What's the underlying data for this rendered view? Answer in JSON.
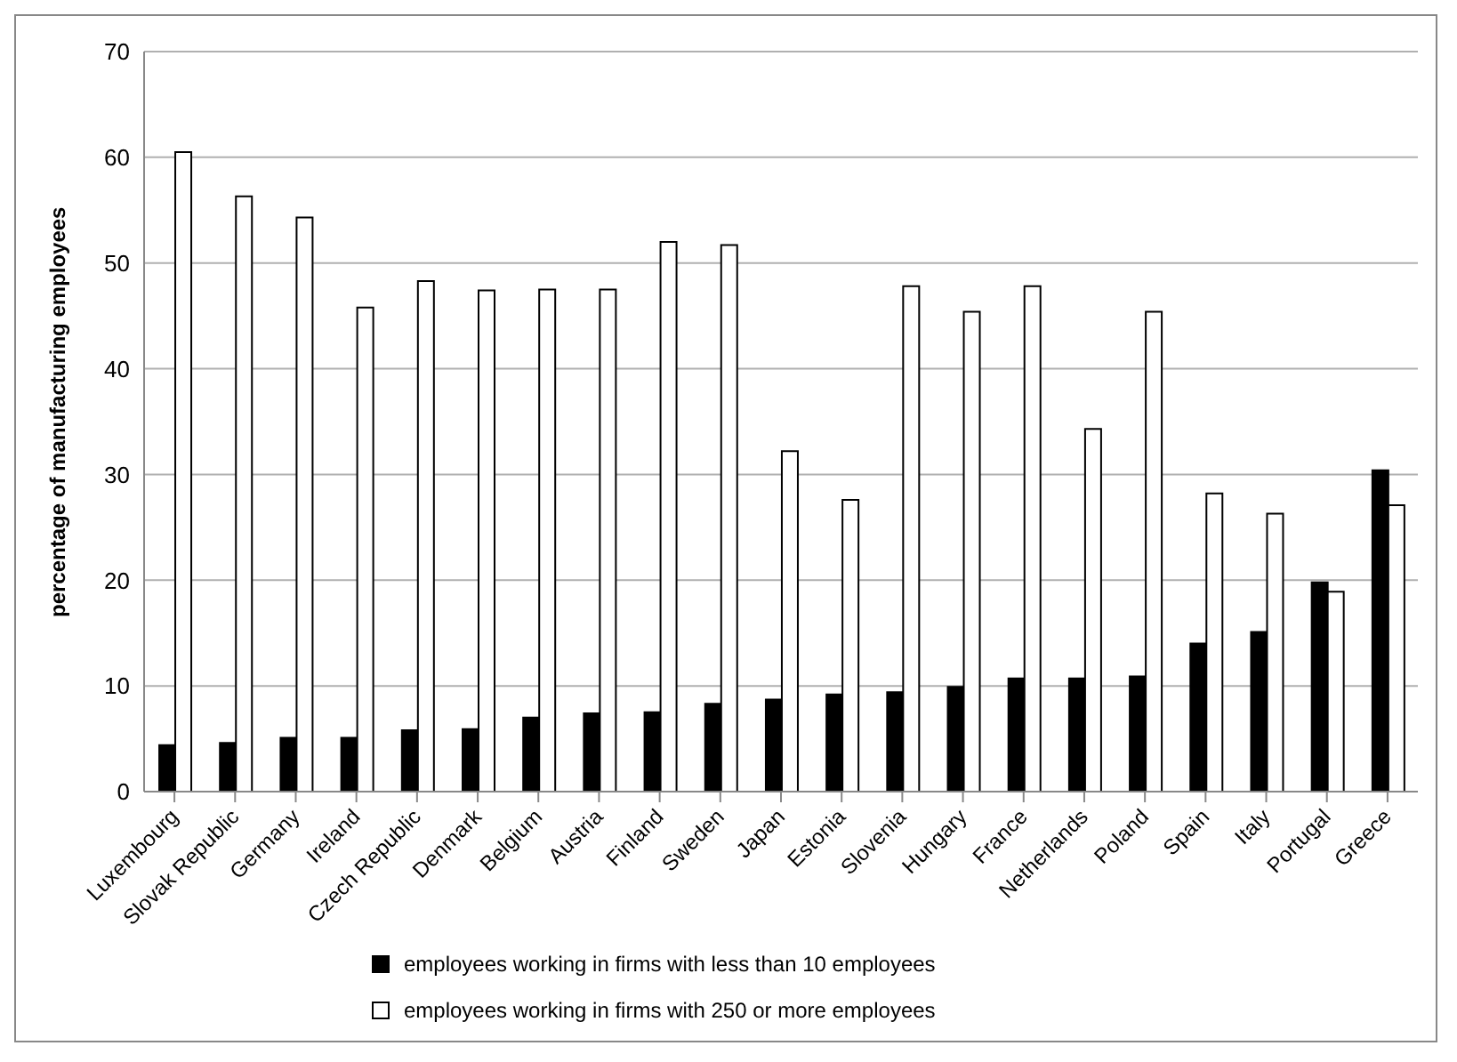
{
  "chart_data": {
    "type": "bar",
    "ylabel": "percentage of manufacturing employees",
    "categories": [
      "Luxembourg",
      "Slovak Republic",
      "Germany",
      "Ireland",
      "Czech Republic",
      "Denmark",
      "Belgium",
      "Austria",
      "Finland",
      "Sweden",
      "Japan",
      "Estonia",
      "Slovenia",
      "Hungary",
      "France",
      "Netherlands",
      "Poland",
      "Spain",
      "Italy",
      "Portugal",
      "Greece"
    ],
    "series": [
      {
        "name": "employees working in firms with less than 10 employees",
        "color": "#000000",
        "values": [
          4.4,
          4.6,
          5.1,
          5.1,
          5.8,
          5.9,
          7.0,
          7.4,
          7.5,
          8.3,
          8.7,
          9.2,
          9.4,
          9.9,
          10.7,
          10.7,
          10.9,
          14.0,
          15.1,
          19.8,
          30.4
        ]
      },
      {
        "name": "employees working in firms with 250 or more employees",
        "color": "#ffffff",
        "values": [
          60.5,
          56.3,
          54.3,
          45.8,
          48.3,
          47.4,
          47.5,
          47.5,
          52.0,
          51.7,
          32.2,
          27.6,
          47.8,
          45.4,
          47.8,
          34.3,
          45.4,
          28.2,
          26.3,
          18.9,
          27.1
        ]
      }
    ],
    "ylim": [
      0,
      70
    ],
    "yticks": [
      0,
      10,
      20,
      30,
      40,
      50,
      60,
      70
    ],
    "grid": "y",
    "legend": "bottom"
  }
}
